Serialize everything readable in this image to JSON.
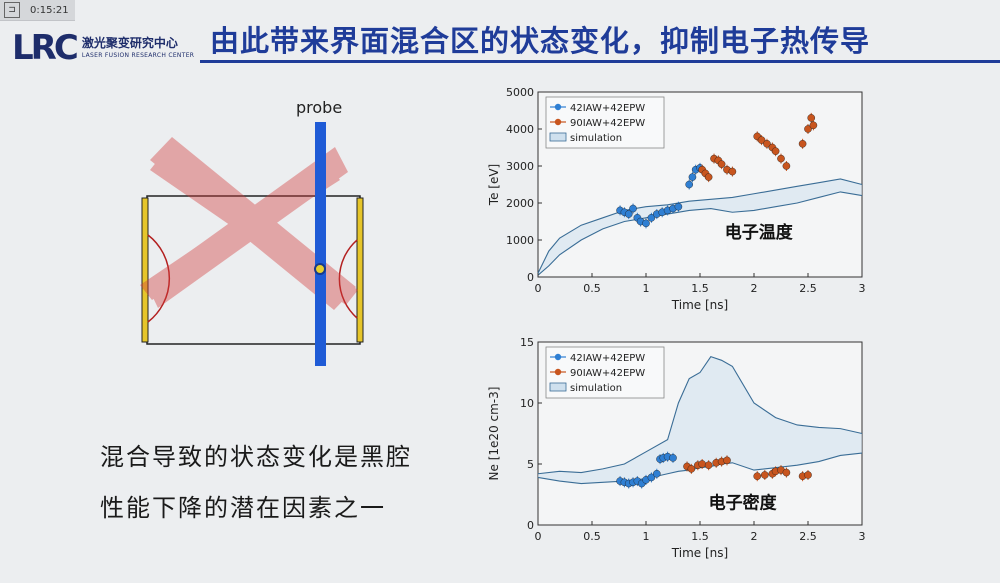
{
  "topbar": {
    "time": "0:15:21"
  },
  "logo": {
    "mark": "LRC",
    "cn": "激光聚变研究中心",
    "en": "LASER FUSION RESEARCH CENTER"
  },
  "title": "由此带来界面混合区的状态变化，抑制电子热传导",
  "diagram": {
    "probe_label": "probe"
  },
  "body_text": [
    "混合导致的状态变化是黑腔",
    "性能下降的潜在因素之一"
  ],
  "colors": {
    "blue_series": "#2f7fd3",
    "orange_series": "#c8551e",
    "title_blue": "#1f3c99"
  },
  "chart_data": [
    {
      "type": "scatter",
      "annotation": "电子温度",
      "xlabel": "Time [ns]",
      "ylabel": "Te [eV]",
      "xlim": [
        0,
        3
      ],
      "ylim": [
        0,
        5000
      ],
      "xticks": [
        0,
        0.5,
        1,
        1.5,
        2,
        2.5,
        3
      ],
      "yticks": [
        0,
        1000,
        2000,
        3000,
        4000,
        5000
      ],
      "xtick_labels": [
        "0",
        "0.5",
        "1",
        "1.5",
        "2",
        "2.5",
        "3"
      ],
      "ytick_labels": [
        "0",
        "1000",
        "2000",
        "3000",
        "4000",
        "5000"
      ],
      "legend": [
        "42IAW+42EPW",
        "90IAW+42EPW",
        "simulation"
      ],
      "legend_position": "top-left",
      "series": [
        {
          "name": "42IAW+42EPW",
          "x": [
            0.76,
            0.8,
            0.84,
            0.88,
            0.92,
            0.95,
            1.0,
            1.05,
            1.1,
            1.15,
            1.2,
            1.25,
            1.3,
            1.4,
            1.43,
            1.46,
            1.5
          ],
          "y": [
            1800,
            1750,
            1700,
            1850,
            1600,
            1500,
            1450,
            1600,
            1700,
            1750,
            1800,
            1850,
            1900,
            2500,
            2700,
            2900,
            2950
          ]
        },
        {
          "name": "90IAW+42EPW",
          "x": [
            1.52,
            1.55,
            1.58,
            1.63,
            1.67,
            1.7,
            1.75,
            1.8,
            2.03,
            2.07,
            2.12,
            2.17,
            2.2,
            2.25,
            2.3,
            2.45,
            2.5,
            2.53,
            2.55
          ],
          "y": [
            2900,
            2800,
            2700,
            3200,
            3150,
            3050,
            2900,
            2850,
            3800,
            3700,
            3600,
            3500,
            3400,
            3200,
            3000,
            3600,
            4000,
            4300,
            4100
          ]
        }
      ],
      "simulation_band": {
        "x": [
          0,
          0.1,
          0.2,
          0.4,
          0.6,
          0.8,
          1.0,
          1.2,
          1.4,
          1.6,
          1.8,
          2.0,
          2.2,
          2.4,
          2.6,
          2.8,
          3.0
        ],
        "upper": [
          100,
          700,
          1050,
          1400,
          1600,
          1800,
          1900,
          1950,
          2050,
          2100,
          2150,
          2250,
          2350,
          2450,
          2550,
          2650,
          2500
        ],
        "lower": [
          50,
          300,
          600,
          1000,
          1300,
          1500,
          1600,
          1700,
          1800,
          1850,
          1750,
          1800,
          1900,
          2000,
          2150,
          2300,
          2200
        ]
      }
    },
    {
      "type": "scatter",
      "annotation": "电子密度",
      "xlabel": "Time [ns]",
      "ylabel": "Ne [1e20 cm-3]",
      "xlim": [
        0,
        3
      ],
      "ylim": [
        0,
        15
      ],
      "xticks": [
        0,
        0.5,
        1,
        1.5,
        2,
        2.5,
        3
      ],
      "yticks": [
        0,
        5,
        10,
        15
      ],
      "xtick_labels": [
        "0",
        "0.5",
        "1",
        "1.5",
        "2",
        "2.5",
        "3"
      ],
      "ytick_labels": [
        "0",
        "5",
        "10",
        "15"
      ],
      "legend": [
        "42IAW+42EPW",
        "90IAW+42EPW",
        "simulation"
      ],
      "legend_position": "top-left",
      "series": [
        {
          "name": "42IAW+42EPW",
          "x": [
            0.76,
            0.8,
            0.84,
            0.88,
            0.92,
            0.96,
            1.0,
            1.05,
            1.1,
            1.13,
            1.16,
            1.2,
            1.25
          ],
          "y": [
            3.6,
            3.5,
            3.4,
            3.5,
            3.6,
            3.4,
            3.7,
            3.9,
            4.2,
            5.4,
            5.5,
            5.6,
            5.5
          ]
        },
        {
          "name": "90IAW+42EPW",
          "x": [
            1.38,
            1.42,
            1.48,
            1.52,
            1.58,
            1.65,
            1.7,
            1.75,
            2.03,
            2.1,
            2.17,
            2.2,
            2.25,
            2.3,
            2.45,
            2.5
          ],
          "y": [
            4.8,
            4.6,
            4.9,
            5.0,
            4.9,
            5.1,
            5.2,
            5.3,
            4.0,
            4.1,
            4.2,
            4.4,
            4.5,
            4.3,
            4.0,
            4.1
          ]
        }
      ],
      "simulation_band": {
        "x": [
          0,
          0.2,
          0.4,
          0.6,
          0.8,
          1.0,
          1.2,
          1.3,
          1.4,
          1.5,
          1.6,
          1.7,
          1.8,
          2.0,
          2.2,
          2.4,
          2.6,
          2.8,
          3.0
        ],
        "upper": [
          4.2,
          4.4,
          4.3,
          4.6,
          5.0,
          6.0,
          7.0,
          10.0,
          12.0,
          12.5,
          13.8,
          13.5,
          13.0,
          10.0,
          8.8,
          8.2,
          8.0,
          7.9,
          7.5
        ],
        "lower": [
          3.9,
          3.6,
          3.4,
          3.5,
          3.6,
          3.8,
          4.2,
          4.4,
          4.5,
          4.7,
          4.8,
          5.0,
          5.1,
          4.5,
          4.7,
          4.9,
          5.2,
          5.7,
          5.9
        ]
      }
    }
  ]
}
